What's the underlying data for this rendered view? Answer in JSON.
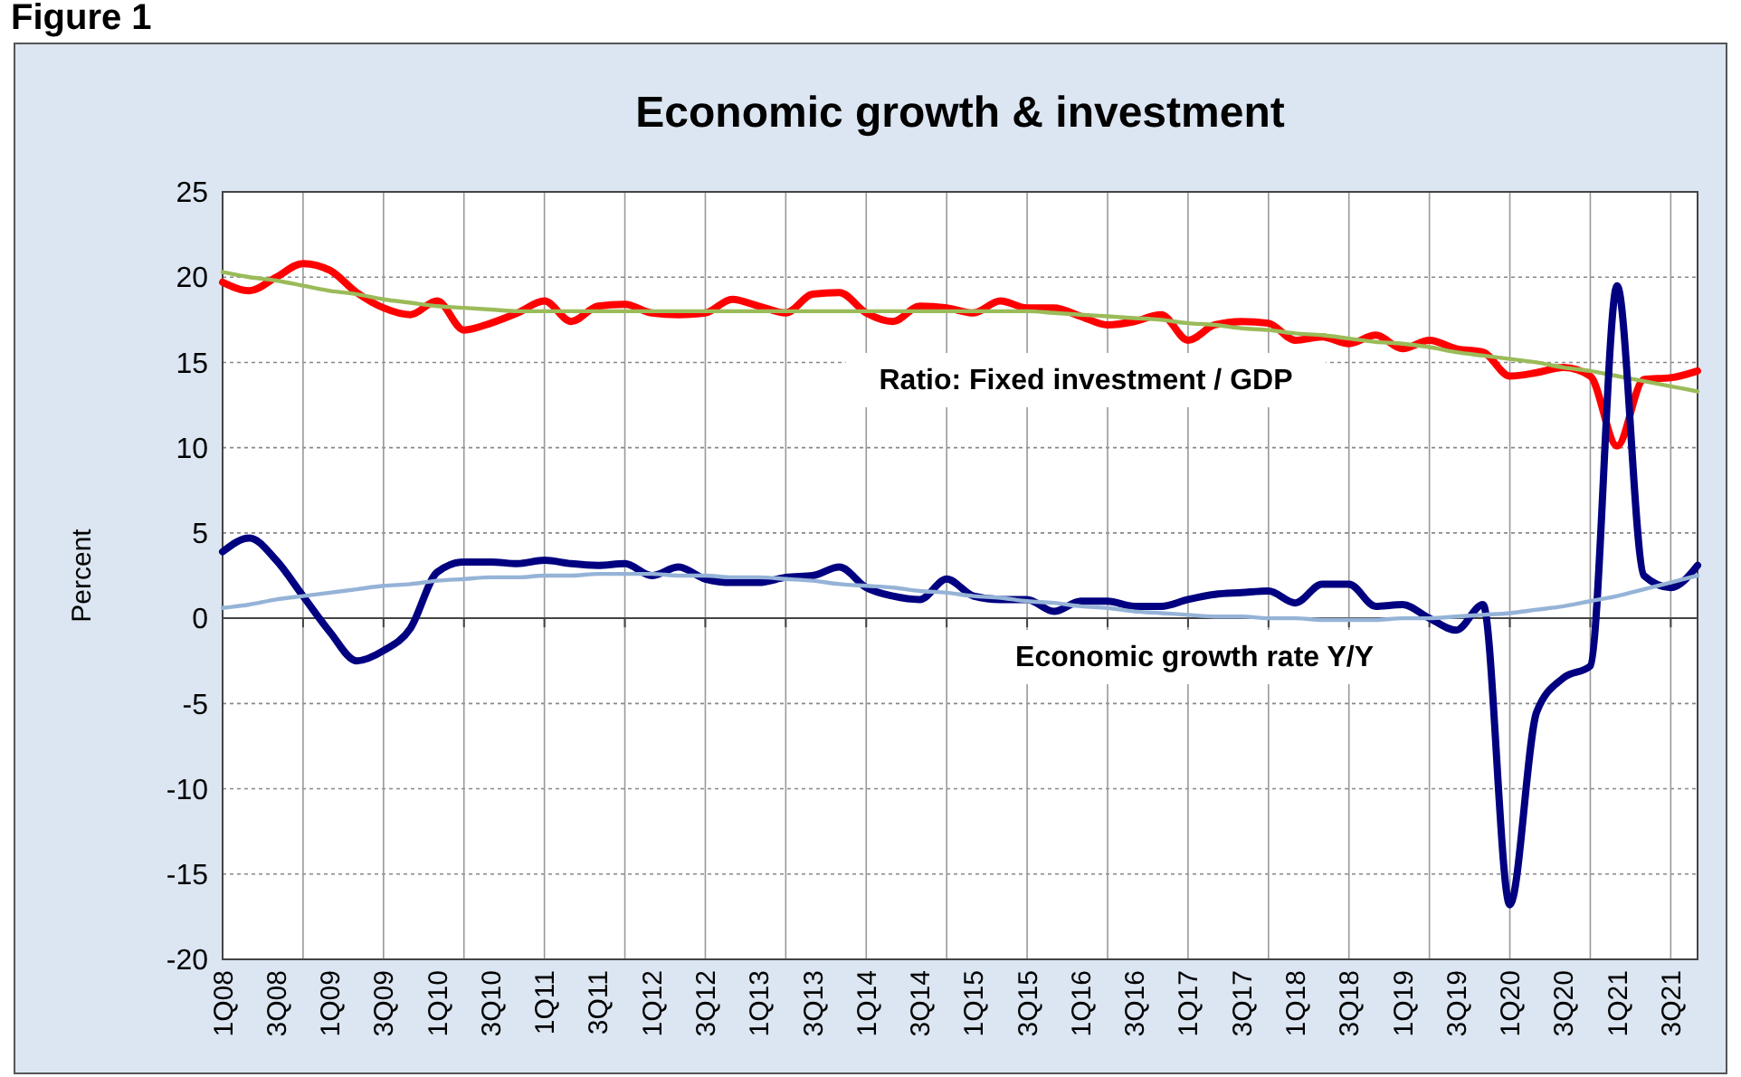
{
  "chart_data": {
    "type": "line",
    "title": "Economic growth & investment",
    "ylabel": "Percent",
    "annotations": [
      "Figure 1"
    ],
    "categories": [
      "1Q08",
      null,
      "3Q08",
      null,
      "1Q09",
      null,
      "3Q09",
      null,
      "1Q10",
      null,
      "3Q10",
      null,
      "1Q11",
      null,
      "3Q11",
      null,
      "1Q12",
      null,
      "3Q12",
      null,
      "1Q13",
      null,
      "3Q13",
      null,
      "1Q14",
      null,
      "3Q14",
      null,
      "1Q15",
      null,
      "3Q15",
      null,
      "1Q16",
      null,
      "3Q16",
      null,
      "1Q17",
      null,
      "3Q17",
      null,
      "1Q18",
      null,
      "3Q18",
      null,
      "1Q19",
      null,
      "3Q19",
      null,
      "1Q20",
      null,
      "3Q20",
      null,
      "1Q21",
      null,
      "3Q21",
      null
    ],
    "ylim": [
      -20,
      25
    ],
    "yticks": [
      -20,
      -15,
      -10,
      -5,
      0,
      5,
      10,
      15,
      20,
      25
    ],
    "grid": true,
    "marker": "none",
    "line_style": "solid",
    "series": [
      {
        "name": "Ratio: Fixed investment / GDP",
        "color": "#ff0000",
        "values": [
          19.7,
          19.2,
          20.0,
          20.8,
          20.4,
          19.1,
          18.2,
          17.8,
          18.6,
          16.9,
          17.3,
          17.9,
          18.6,
          17.4,
          18.3,
          18.4,
          17.9,
          17.8,
          17.9,
          18.7,
          18.3,
          17.9,
          19.0,
          19.1,
          17.9,
          17.4,
          18.3,
          18.2,
          17.9,
          18.6,
          18.2,
          18.2,
          17.7,
          17.2,
          17.4,
          17.8,
          16.3,
          17.2,
          17.4,
          17.3,
          16.3,
          16.5,
          16.1,
          16.6,
          15.8,
          16.3,
          15.8,
          15.6,
          14.2,
          14.4,
          14.7,
          14.2,
          10.1,
          14.0,
          14.1,
          14.5
        ]
      },
      {
        "color": "#9bbb59",
        "values": [
          20.3,
          20.0,
          19.8,
          19.5,
          19.2,
          19.0,
          18.7,
          18.5,
          18.3,
          18.2,
          18.1,
          18.0,
          18.0,
          18.0,
          18.0,
          18.0,
          18.0,
          18.0,
          18.0,
          18.0,
          18.0,
          18.0,
          18.0,
          18.0,
          18.0,
          18.0,
          18.0,
          18.0,
          18.0,
          18.0,
          18.0,
          17.9,
          17.8,
          17.7,
          17.6,
          17.5,
          17.3,
          17.2,
          17.0,
          16.9,
          16.7,
          16.6,
          16.4,
          16.2,
          16.1,
          15.9,
          15.6,
          15.4,
          15.2,
          15.0,
          14.7,
          14.5,
          14.2,
          13.9,
          13.6,
          13.3
        ]
      },
      {
        "name": "Economic growth rate Y/Y",
        "color": "#000080",
        "values": [
          3.9,
          4.7,
          3.4,
          1.3,
          -0.8,
          -2.5,
          -1.9,
          -0.6,
          2.7,
          3.3,
          3.3,
          3.2,
          3.4,
          3.2,
          3.1,
          3.2,
          2.5,
          3.0,
          2.3,
          2.1,
          2.1,
          2.4,
          2.5,
          3.0,
          1.8,
          1.3,
          1.1,
          2.3,
          1.3,
          1.1,
          1.1,
          0.4,
          1.0,
          1.0,
          0.7,
          0.7,
          1.1,
          1.4,
          1.5,
          1.6,
          0.9,
          2.0,
          2.0,
          0.7,
          0.8,
          0.0,
          -0.7,
          0.8,
          -16.8,
          -5.5,
          -3.5,
          -2.8,
          19.5,
          2.5,
          1.8,
          3.1
        ]
      },
      {
        "color": "#95b3d7",
        "values": [
          0.6,
          0.8,
          1.1,
          1.3,
          1.5,
          1.7,
          1.9,
          2.0,
          2.2,
          2.3,
          2.4,
          2.4,
          2.5,
          2.5,
          2.6,
          2.6,
          2.6,
          2.5,
          2.5,
          2.4,
          2.4,
          2.3,
          2.2,
          2.0,
          1.9,
          1.8,
          1.6,
          1.5,
          1.3,
          1.2,
          1.0,
          0.9,
          0.7,
          0.6,
          0.4,
          0.3,
          0.2,
          0.1,
          0.1,
          0.0,
          0.0,
          -0.1,
          -0.1,
          -0.1,
          0.0,
          0.0,
          0.1,
          0.2,
          0.3,
          0.5,
          0.7,
          1.0,
          1.3,
          1.7,
          2.1,
          2.5
        ]
      }
    ]
  }
}
